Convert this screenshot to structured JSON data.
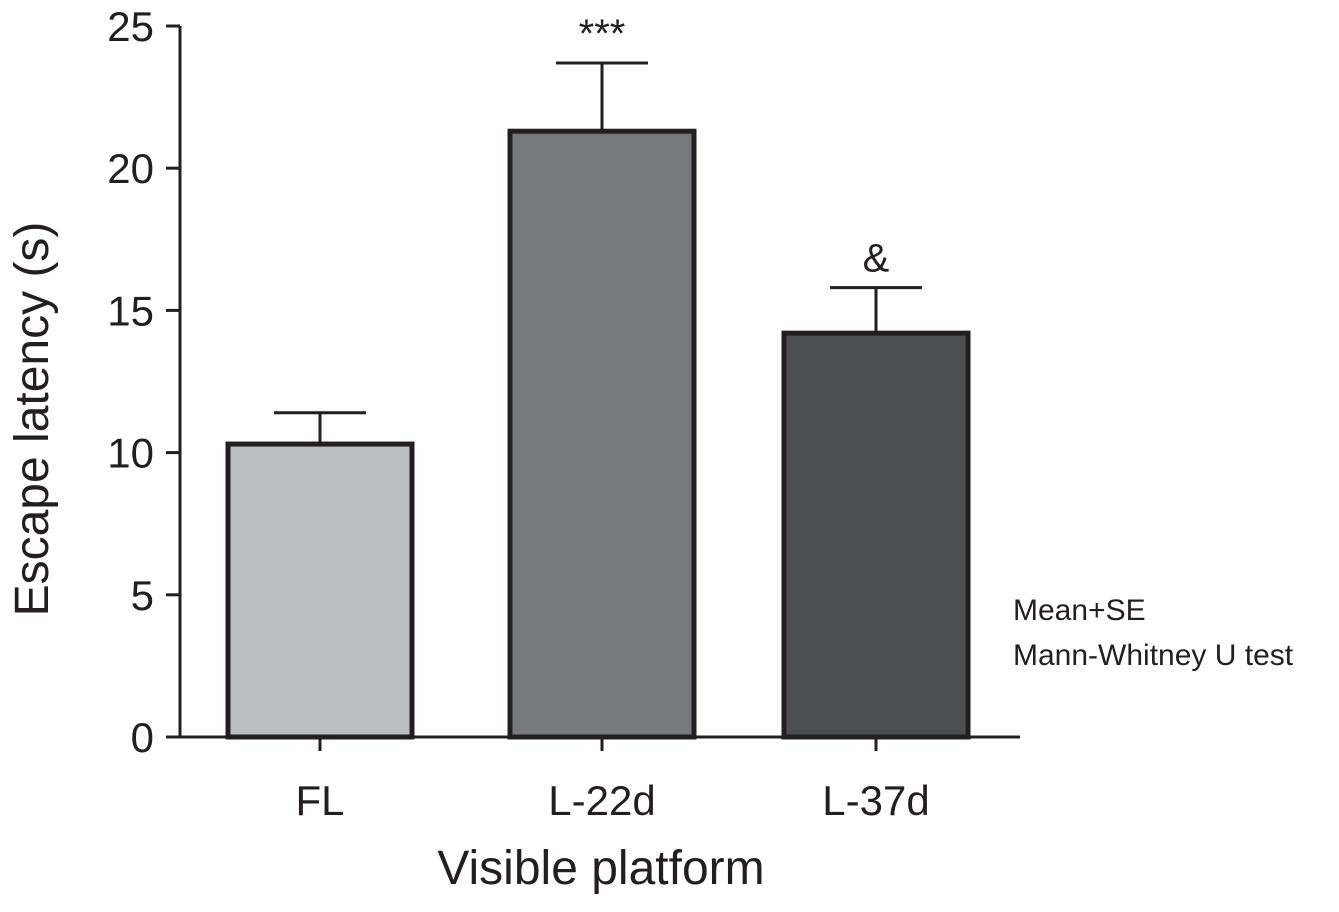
{
  "chart_data": {
    "type": "bar",
    "categories": [
      "FL",
      "L-22d",
      "L-37d"
    ],
    "values": [
      10.3,
      21.3,
      14.2
    ],
    "errors": [
      1.1,
      2.4,
      1.6
    ],
    "significance": [
      "",
      "***",
      "&"
    ],
    "colors": [
      "#bcbdbf",
      "#77787b",
      "#4d4e50"
    ],
    "xlabel": "Visible platform",
    "ylabel": "Escape latency (s)",
    "ylim": [
      0,
      25
    ],
    "yticks": [
      0,
      5,
      10,
      15,
      20,
      25
    ],
    "notes": [
      "Mean+SE",
      "Mann-Whitney U test"
    ],
    "grid": false,
    "legend": "none"
  }
}
